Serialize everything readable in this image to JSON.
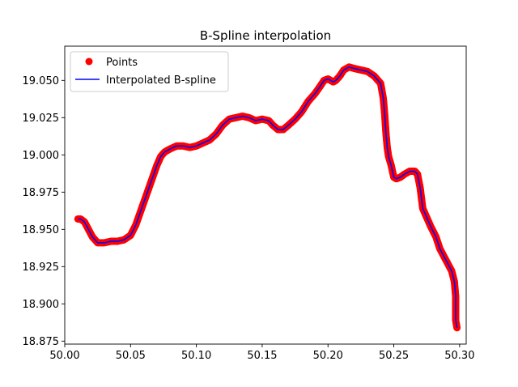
{
  "chart_data": {
    "type": "line",
    "title": "B-Spline interpolation",
    "xlabel": "",
    "ylabel": "",
    "xlim": [
      50.0,
      50.305
    ],
    "ylim": [
      18.873,
      19.073
    ],
    "xticks": [
      50.0,
      50.05,
      50.1,
      50.15,
      50.2,
      50.25,
      50.3
    ],
    "xtick_labels": [
      "50.00",
      "50.05",
      "50.10",
      "50.15",
      "50.20",
      "50.25",
      "50.30"
    ],
    "yticks": [
      18.875,
      18.9,
      18.925,
      18.95,
      18.975,
      19.0,
      19.025,
      19.05
    ],
    "ytick_labels": [
      "18.875",
      "18.900",
      "18.925",
      "18.950",
      "18.975",
      "19.000",
      "19.025",
      "19.050"
    ],
    "grid": false,
    "legend_position": "top-left",
    "series": [
      {
        "name": "Points",
        "style": "markers",
        "color": "#ff0000",
        "x": [
          50.01,
          50.012,
          50.015,
          50.018,
          50.021,
          50.025,
          50.03,
          50.035,
          50.04,
          50.045,
          50.05,
          50.054,
          50.058,
          50.062,
          50.066,
          50.07,
          50.073,
          50.076,
          50.08,
          50.085,
          50.09,
          50.095,
          50.1,
          50.105,
          50.11,
          50.115,
          50.12,
          50.125,
          50.13,
          50.135,
          50.14,
          50.145,
          50.15,
          50.155,
          50.158,
          50.162,
          50.166,
          50.17,
          50.175,
          50.18,
          50.185,
          50.19,
          50.194,
          50.197,
          50.2,
          50.202,
          50.204,
          50.206,
          50.209,
          50.212,
          50.216,
          50.22,
          50.225,
          50.23,
          50.235,
          50.24,
          50.242,
          50.243,
          50.244,
          50.245,
          50.246,
          50.248,
          50.25,
          50.252,
          50.255,
          50.258,
          50.262,
          50.266,
          50.268,
          50.27,
          50.272,
          50.275,
          50.278,
          50.282,
          50.285,
          50.288,
          50.291,
          50.294,
          50.296,
          50.297,
          50.297,
          50.297,
          50.298
        ],
        "y": [
          18.957,
          18.957,
          18.955,
          18.95,
          18.945,
          18.941,
          18.941,
          18.942,
          18.942,
          18.943,
          18.946,
          18.953,
          18.963,
          18.973,
          18.983,
          18.993,
          18.999,
          19.002,
          19.004,
          19.006,
          19.006,
          19.005,
          19.006,
          19.008,
          19.01,
          19.014,
          19.02,
          19.024,
          19.025,
          19.026,
          19.025,
          19.023,
          19.024,
          19.023,
          19.02,
          19.017,
          19.017,
          19.02,
          19.024,
          19.029,
          19.036,
          19.041,
          19.046,
          19.05,
          19.051,
          19.05,
          19.049,
          19.05,
          19.053,
          19.057,
          19.059,
          19.058,
          19.057,
          19.056,
          19.053,
          19.048,
          19.038,
          19.028,
          19.015,
          19.005,
          18.999,
          18.993,
          18.985,
          18.984,
          18.985,
          18.987,
          18.989,
          18.989,
          18.987,
          18.978,
          18.964,
          18.958,
          18.952,
          18.945,
          18.937,
          18.932,
          18.927,
          18.922,
          18.915,
          18.905,
          18.896,
          18.889,
          18.884
        ]
      },
      {
        "name": "Interpolated B-spline",
        "style": "line",
        "color": "#0000ff",
        "x": [
          50.01,
          50.012,
          50.015,
          50.018,
          50.021,
          50.025,
          50.03,
          50.035,
          50.04,
          50.045,
          50.05,
          50.054,
          50.058,
          50.062,
          50.066,
          50.07,
          50.073,
          50.076,
          50.08,
          50.085,
          50.09,
          50.095,
          50.1,
          50.105,
          50.11,
          50.115,
          50.12,
          50.125,
          50.13,
          50.135,
          50.14,
          50.145,
          50.15,
          50.155,
          50.158,
          50.162,
          50.166,
          50.17,
          50.175,
          50.18,
          50.185,
          50.19,
          50.194,
          50.197,
          50.2,
          50.202,
          50.204,
          50.206,
          50.209,
          50.212,
          50.216,
          50.22,
          50.225,
          50.23,
          50.235,
          50.24,
          50.242,
          50.243,
          50.244,
          50.245,
          50.246,
          50.248,
          50.25,
          50.252,
          50.255,
          50.258,
          50.262,
          50.266,
          50.268,
          50.27,
          50.272,
          50.275,
          50.278,
          50.282,
          50.285,
          50.288,
          50.291,
          50.294,
          50.296,
          50.297,
          50.297,
          50.297,
          50.298
        ],
        "y": [
          18.957,
          18.957,
          18.955,
          18.95,
          18.945,
          18.941,
          18.941,
          18.942,
          18.942,
          18.943,
          18.946,
          18.953,
          18.963,
          18.973,
          18.983,
          18.993,
          18.999,
          19.002,
          19.004,
          19.006,
          19.006,
          19.005,
          19.006,
          19.008,
          19.01,
          19.014,
          19.02,
          19.024,
          19.025,
          19.026,
          19.025,
          19.023,
          19.024,
          19.023,
          19.02,
          19.017,
          19.017,
          19.02,
          19.024,
          19.029,
          19.036,
          19.041,
          19.046,
          19.05,
          19.051,
          19.05,
          19.049,
          19.05,
          19.053,
          19.057,
          19.059,
          19.058,
          19.057,
          19.056,
          19.053,
          19.048,
          19.038,
          19.028,
          19.015,
          19.005,
          18.999,
          18.993,
          18.985,
          18.984,
          18.985,
          18.987,
          18.989,
          18.989,
          18.987,
          18.978,
          18.964,
          18.958,
          18.952,
          18.945,
          18.937,
          18.932,
          18.927,
          18.922,
          18.915,
          18.905,
          18.896,
          18.889,
          18.884
        ]
      }
    ]
  }
}
